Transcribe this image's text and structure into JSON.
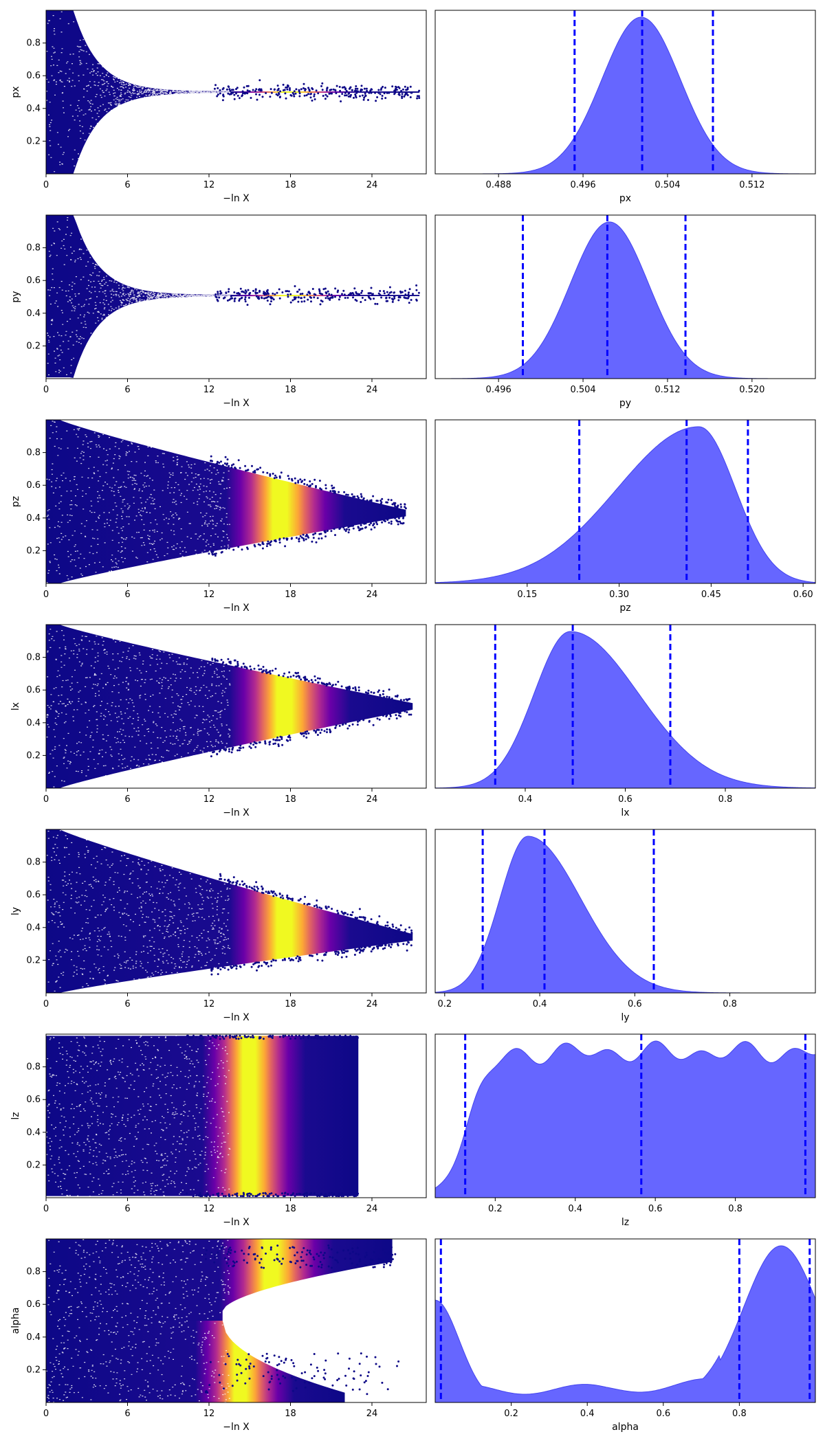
{
  "colors": {
    "trace_low": "#0d0887",
    "trace_mid": "#cc4778",
    "trace_high": "#f0f921",
    "posterior_fill": "#6666ff",
    "posterior_edge": "#4444ee",
    "quantile_line": "#0000ff"
  },
  "chart_data": [
    {
      "type": "scatter",
      "param": "px",
      "xlabel": "−ln X",
      "ylabel": "px",
      "xlim": [
        0,
        28
      ],
      "ylim": [
        0,
        1
      ],
      "xticks": [
        0,
        6,
        12,
        18,
        24
      ],
      "yticks": [
        0.2,
        0.4,
        0.6,
        0.8
      ],
      "center": 0.5,
      "converge": "funnel",
      "max_lnx": 27.5,
      "colormap": "plasma"
    },
    {
      "type": "area",
      "param": "px",
      "xlabel": "px",
      "xlim": [
        0.482,
        0.518
      ],
      "xticks": [
        0.488,
        0.496,
        0.504,
        0.512
      ],
      "mean": 0.5015,
      "sd": 0.0037,
      "quantiles": [
        0.4952,
        0.5016,
        0.5083
      ]
    },
    {
      "type": "scatter",
      "param": "py",
      "xlabel": "−ln X",
      "ylabel": "py",
      "xlim": [
        0,
        28
      ],
      "ylim": [
        0,
        1
      ],
      "xticks": [
        0,
        6,
        12,
        18,
        24
      ],
      "yticks": [
        0.2,
        0.4,
        0.6,
        0.8
      ],
      "center": 0.508,
      "converge": "funnel",
      "max_lnx": 27.5,
      "colormap": "plasma"
    },
    {
      "type": "area",
      "param": "py",
      "xlabel": "py",
      "xlim": [
        0.49,
        0.526
      ],
      "xticks": [
        0.496,
        0.504,
        0.512,
        0.52
      ],
      "mean": 0.5065,
      "sd": 0.0037,
      "quantiles": [
        0.4983,
        0.5063,
        0.5137
      ]
    },
    {
      "type": "scatter",
      "param": "pz",
      "xlabel": "−ln X",
      "ylabel": "pz",
      "xlim": [
        0,
        28
      ],
      "ylim": [
        0,
        1
      ],
      "xticks": [
        0,
        6,
        12,
        18,
        24
      ],
      "yticks": [
        0.2,
        0.4,
        0.6,
        0.8
      ],
      "center": 0.43,
      "converge": "wedge",
      "max_lnx": 26.5,
      "colormap": "plasma"
    },
    {
      "type": "area",
      "param": "pz",
      "xlabel": "pz",
      "xlim": [
        0.0,
        0.62
      ],
      "xticks": [
        0.15,
        0.3,
        0.45,
        0.6
      ],
      "mean": 0.43,
      "sd": 0.07,
      "skew": "left",
      "quantiles": [
        0.235,
        0.41,
        0.51
      ]
    },
    {
      "type": "scatter",
      "param": "lx",
      "xlabel": "−ln X",
      "ylabel": "lx",
      "xlim": [
        0,
        28
      ],
      "ylim": [
        0,
        1
      ],
      "xticks": [
        0,
        6,
        12,
        18,
        24
      ],
      "yticks": [
        0.2,
        0.4,
        0.6,
        0.8
      ],
      "center": 0.5,
      "converge": "wedge",
      "max_lnx": 27,
      "colormap": "plasma"
    },
    {
      "type": "area",
      "param": "lx",
      "xlabel": "lx",
      "xlim": [
        0.22,
        0.98
      ],
      "xticks": [
        0.4,
        0.6,
        0.8
      ],
      "mean": 0.49,
      "sd": 0.08,
      "skew": "right",
      "quantiles": [
        0.34,
        0.495,
        0.69
      ]
    },
    {
      "type": "scatter",
      "param": "ly",
      "xlabel": "−ln X",
      "ylabel": "ly",
      "xlim": [
        0,
        28
      ],
      "ylim": [
        0,
        1
      ],
      "xticks": [
        0,
        6,
        12,
        18,
        24
      ],
      "yticks": [
        0.2,
        0.4,
        0.6,
        0.8
      ],
      "center": 0.34,
      "converge": "wedge",
      "max_lnx": 27,
      "colormap": "plasma"
    },
    {
      "type": "area",
      "param": "ly",
      "xlabel": "ly",
      "xlim": [
        0.18,
        0.98
      ],
      "xticks": [
        0.2,
        0.4,
        0.6,
        0.8
      ],
      "mean": 0.375,
      "sd": 0.065,
      "skew": "right",
      "quantiles": [
        0.28,
        0.41,
        0.64
      ]
    },
    {
      "type": "scatter",
      "param": "lz",
      "xlabel": "−ln X",
      "ylabel": "lz",
      "xlim": [
        0,
        28
      ],
      "ylim": [
        0,
        1
      ],
      "xticks": [
        0,
        6,
        12,
        18,
        24
      ],
      "yticks": [
        0.2,
        0.4,
        0.6,
        0.8
      ],
      "center": 0.5,
      "converge": "none",
      "max_lnx": 23,
      "colormap": "plasma"
    },
    {
      "type": "area",
      "param": "lz",
      "xlabel": "lz",
      "xlim": [
        0.05,
        1.0
      ],
      "xticks": [
        0.2,
        0.4,
        0.6,
        0.8
      ],
      "shape": "uniform",
      "quantiles": [
        0.125,
        0.565,
        0.975
      ]
    },
    {
      "type": "scatter",
      "param": "alpha",
      "xlabel": "−ln X",
      "ylabel": "alpha",
      "xlim": [
        0,
        28
      ],
      "ylim": [
        0,
        1
      ],
      "xticks": [
        0,
        6,
        12,
        18,
        24
      ],
      "yticks": [
        0.2,
        0.4,
        0.6,
        0.8
      ],
      "center": 0.88,
      "converge": "split",
      "max_lnx": 26,
      "colormap": "plasma"
    },
    {
      "type": "area",
      "param": "alpha",
      "xlabel": "alpha",
      "xlim": [
        0.0,
        1.0
      ],
      "xticks": [
        0.2,
        0.4,
        0.6,
        0.8
      ],
      "shape": "bimodal",
      "quantiles": [
        0.015,
        0.8,
        0.985
      ]
    }
  ]
}
